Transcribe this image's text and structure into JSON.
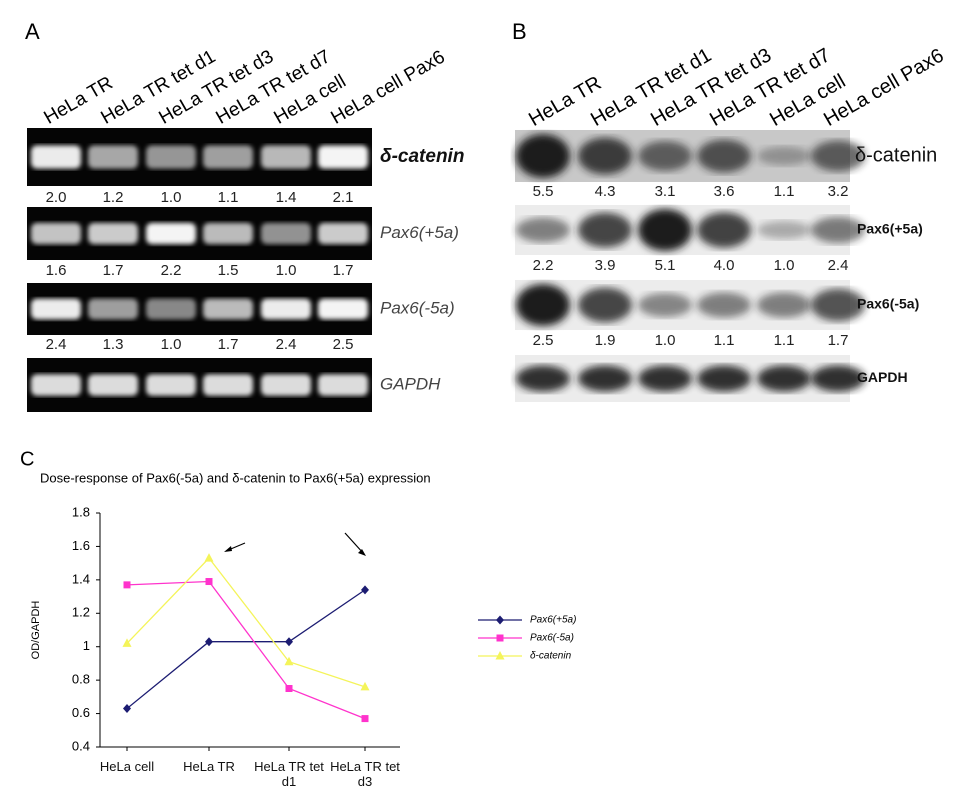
{
  "panel_a": {
    "label": "A",
    "lanes": [
      "HeLa TR",
      "HeLa TR tet d1",
      "HeLa TR tet d3",
      "HeLa TR tet d7",
      "HeLa cell",
      "HeLa cell Pax6"
    ],
    "rows": [
      {
        "name": "δ-catenin",
        "values": [
          2,
          1.2,
          1,
          1.1,
          1.4,
          2.1
        ],
        "value_labels": [
          "2.0",
          "1.2",
          "1.0",
          "1.1",
          "1.4",
          "2.1"
        ]
      },
      {
        "name": "Pax6(+5a)",
        "values": [
          1.6,
          1.7,
          2.2,
          1.5,
          1,
          1.7
        ],
        "value_labels": [
          "1.6",
          "1.7",
          "2.2",
          "1.5",
          "1.0",
          "1.7"
        ]
      },
      {
        "name": "Pax6(-5a)",
        "values": [
          2.4,
          1.3,
          1,
          1.7,
          2.4,
          2.5
        ],
        "value_labels": [
          "2.4",
          "1.3",
          "1.0",
          "1.7",
          "2.4",
          "2.5"
        ]
      },
      {
        "name": "GAPDH"
      }
    ]
  },
  "panel_b": {
    "label": "B",
    "lanes": [
      "HeLa TR",
      "HeLa TR tet d1",
      "HeLa TR tet d3",
      "HeLa TR tet d7",
      "HeLa cell",
      "HeLa cell Pax6"
    ],
    "rows": [
      {
        "name": "δ-catenin",
        "values": [
          5.5,
          4.3,
          3.1,
          3.6,
          1.1,
          3.2
        ]
      },
      {
        "name": "Pax6(+5a)",
        "values": [
          2.2,
          3.9,
          5.1,
          4,
          1,
          2.4
        ],
        "value_labels": [
          "2.2",
          "3.9",
          "5.1",
          "4.0",
          "1.0",
          "2.4"
        ]
      },
      {
        "name": "Pax6(-5a)",
        "values": [
          2.5,
          1.9,
          1,
          1.1,
          1.1,
          1.7
        ],
        "value_labels": [
          "2.5",
          "1.9",
          "1.0",
          "1.1",
          "1.1",
          "1.7"
        ]
      },
      {
        "name": "GAPDH"
      }
    ]
  },
  "chart_data": {
    "type": "line",
    "label": "C",
    "title": "Dose-response of Pax6(-5a) and δ-catenin to Pax6(+5a) expression",
    "ylabel": "OD/GAPDH",
    "categories": [
      "HeLa cell",
      "HeLa TR",
      "HeLa TR tet d1",
      "HeLa TR tet d3"
    ],
    "series": [
      {
        "name": "Pax6(+5a)",
        "color": "#1c1c72",
        "marker": "diamond",
        "values": [
          0.63,
          1.03,
          1.03,
          1.34
        ]
      },
      {
        "name": "Pax6(-5a)",
        "color": "#ff33cc",
        "marker": "square",
        "values": [
          1.37,
          1.39,
          0.75,
          0.57
        ]
      },
      {
        "name": "δ-catenin",
        "color": "#f4f45a",
        "marker": "triangle",
        "values": [
          1.02,
          1.53,
          0.91,
          0.76
        ]
      }
    ],
    "ylim": [
      0.4,
      1.8
    ],
    "yticks": [
      0.4,
      0.6,
      0.8,
      1,
      1.2,
      1.4,
      1.6,
      1.8
    ],
    "legend": "right"
  }
}
